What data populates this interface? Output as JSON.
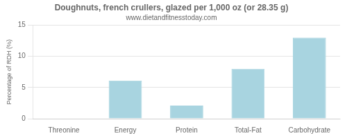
{
  "chart_data": {
    "type": "bar",
    "title": "Doughnuts, french crullers, glazed per 1,000 oz (or 28.35 g)",
    "subtitle": "www.dietandfitnesstoday.com",
    "categories": [
      "Threonine",
      "Energy",
      "Protein",
      "Total-Fat",
      "Carbohydrate"
    ],
    "values": [
      0,
      6.1,
      2.1,
      8.0,
      13.0
    ],
    "color": "#a8d4e0",
    "ylabel": "Percentage of RDH (%)",
    "ylim": [
      0,
      15
    ],
    "yticks": [
      0,
      5,
      10,
      15
    ],
    "grid": true
  }
}
